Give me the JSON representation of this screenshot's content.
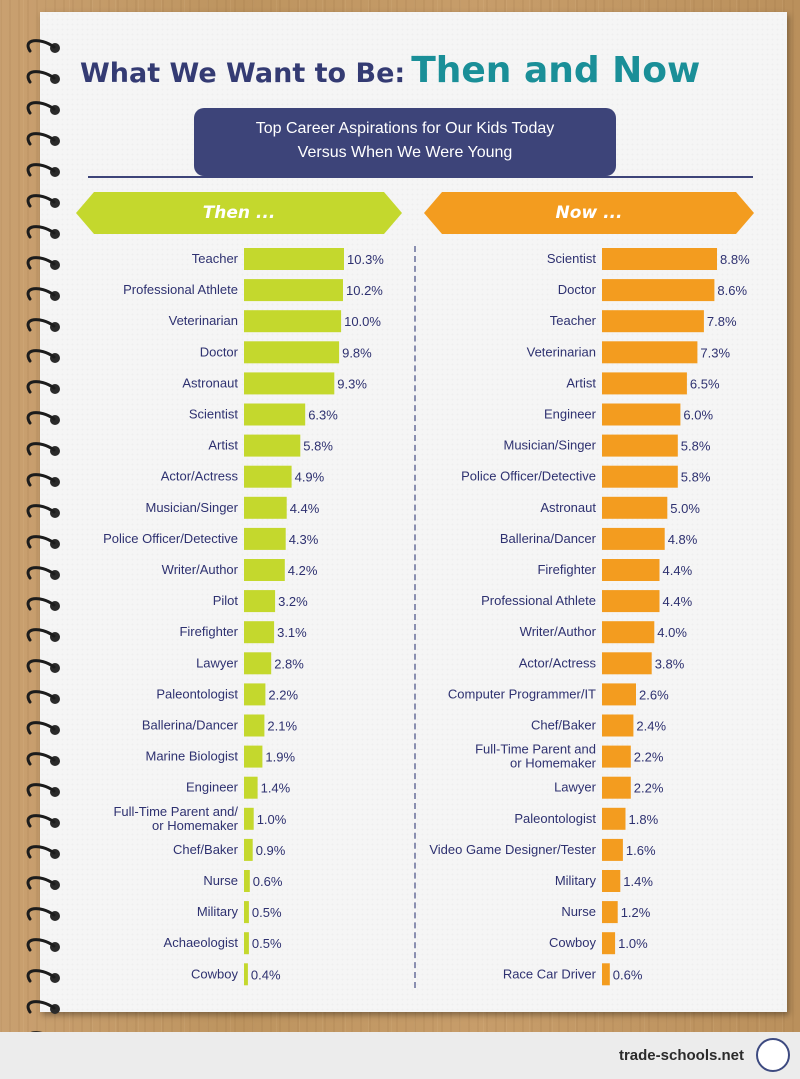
{
  "title_part1": "What We Want to Be:",
  "title_part2": "Then and Now",
  "subtitle_line1": "Top Career Aspirations for Our Kids Today",
  "subtitle_line2": "Versus When We Were Young",
  "brand": "trade-schools.net",
  "colors": {
    "then": "#c4d82d",
    "now": "#f39c1f",
    "text": "#2e3170",
    "title": "#343b73",
    "accent": "#1a8f98"
  },
  "chart_data": [
    {
      "type": "bar",
      "orientation": "horizontal",
      "title": "Then ...",
      "categories": [
        "Teacher",
        "Professional Athlete",
        "Veterinarian",
        "Doctor",
        "Astronaut",
        "Scientist",
        "Artist",
        "Actor/Actress",
        "Musician/Singer",
        "Police Officer/Detective",
        "Writer/Author",
        "Pilot",
        "Firefighter",
        "Lawyer",
        "Paleontologist",
        "Ballerina/Dancer",
        "Marine Biologist",
        "Engineer",
        "Full-Time Parent and/\nor Homemaker",
        "Chef/Baker",
        "Nurse",
        "Military",
        "Achaeologist",
        "Cowboy"
      ],
      "values": [
        10.3,
        10.2,
        10.0,
        9.8,
        9.3,
        6.3,
        5.8,
        4.9,
        4.4,
        4.3,
        4.2,
        3.2,
        3.1,
        2.8,
        2.2,
        2.1,
        1.9,
        1.4,
        1.0,
        0.9,
        0.6,
        0.5,
        0.5,
        0.4
      ],
      "labels": [
        "10.3%",
        "10.2%",
        "10.0%",
        "9.8%",
        "9.3%",
        "6.3%",
        "5.8%",
        "4.9%",
        "4.4%",
        "4.3%",
        "4.2%",
        "3.2%",
        "3.1%",
        "2.8%",
        "2.2%",
        "2.1%",
        "1.9%",
        "1.4%",
        "1.0%",
        "0.9%",
        "0.6%",
        "0.5%",
        "0.5%",
        "0.4%"
      ],
      "unit": "%"
    },
    {
      "type": "bar",
      "orientation": "horizontal",
      "title": "Now ...",
      "categories": [
        "Scientist",
        "Doctor",
        "Teacher",
        "Veterinarian",
        "Artist",
        "Engineer",
        "Musician/Singer",
        "Police Officer/Detective",
        "Astronaut",
        "Ballerina/Dancer",
        "Firefighter",
        "Professional Athlete",
        "Writer/Author",
        "Actor/Actress",
        "Computer Programmer/IT",
        "Chef/Baker",
        "Full-Time Parent and\nor Homemaker",
        "Lawyer",
        "Paleontologist",
        "Video Game Designer/Tester",
        "Military",
        "Nurse",
        "Cowboy",
        "Race Car Driver"
      ],
      "values": [
        8.8,
        8.6,
        7.8,
        7.3,
        6.5,
        6.0,
        5.8,
        5.8,
        5.0,
        4.8,
        4.4,
        4.4,
        4.0,
        3.8,
        2.6,
        2.4,
        2.2,
        2.2,
        1.8,
        1.6,
        1.4,
        1.2,
        1.0,
        0.6
      ],
      "labels": [
        "8.8%",
        "8.6%",
        "7.8%",
        "7.3%",
        "6.5%",
        "6.0%",
        "5.8%",
        "5.8%",
        "5.0%",
        "4.8%",
        "4.4%",
        "4.4%",
        "4.0%",
        "3.8%",
        "2.6%",
        "2.4%",
        "2.2%",
        "2.2%",
        "1.8%",
        "1.6%",
        "1.4%",
        "1.2%",
        "1.0%",
        "0.6%"
      ],
      "unit": "%"
    }
  ]
}
